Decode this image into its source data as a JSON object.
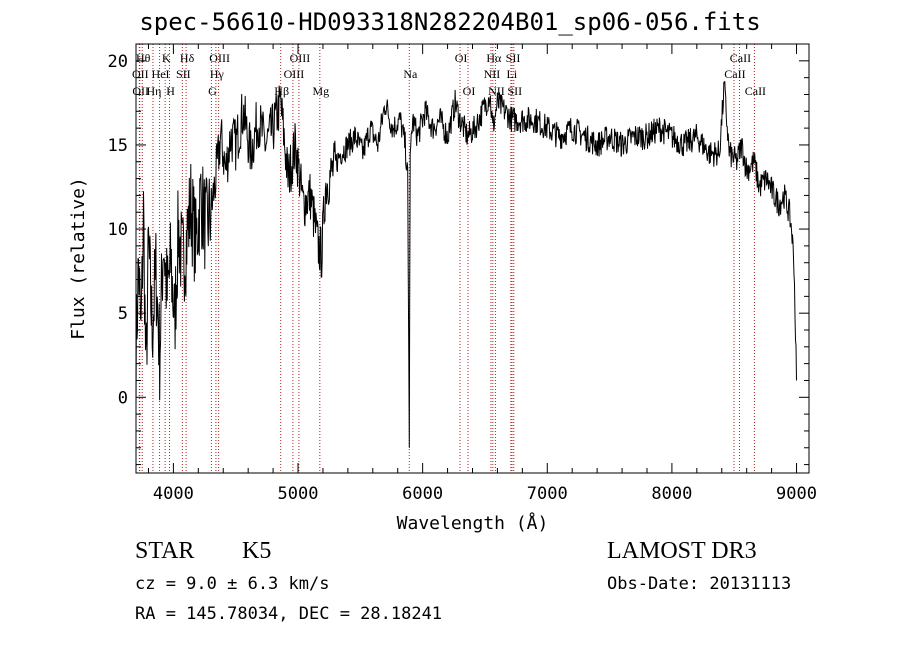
{
  "chart_data": {
    "type": "line",
    "title": "spec-56610-HD093318N282204B01_sp06-056.fits",
    "xlabel": "Wavelength (Å)",
    "ylabel": "Flux (relative)",
    "xlim": [
      3700,
      9100
    ],
    "ylim": [
      -4.5,
      21
    ],
    "xticks": [
      4000,
      5000,
      6000,
      7000,
      8000,
      9000
    ],
    "yticks": [
      0,
      5,
      10,
      15,
      20
    ],
    "series": [
      {
        "name": "flux",
        "x": [
          3700,
          3720,
          3740,
          3760,
          3780,
          3800,
          3830,
          3860,
          3890,
          3920,
          3950,
          3980,
          4010,
          4040,
          4070,
          4100,
          4140,
          4180,
          4220,
          4260,
          4300,
          4340,
          4380,
          4420,
          4460,
          4500,
          4560,
          4620,
          4680,
          4740,
          4800,
          4860,
          4920,
          4980,
          5040,
          5100,
          5160,
          5190,
          5220,
          5280,
          5340,
          5400,
          5460,
          5520,
          5580,
          5640,
          5700,
          5760,
          5820,
          5860,
          5880,
          5893,
          5900,
          5920,
          5960,
          6020,
          6080,
          6140,
          6200,
          6260,
          6300,
          6360,
          6420,
          6480,
          6540,
          6563,
          6600,
          6660,
          6720,
          6800,
          6900,
          7000,
          7100,
          7200,
          7300,
          7400,
          7500,
          7600,
          7700,
          7800,
          7900,
          8000,
          8100,
          8200,
          8300,
          8380,
          8420,
          8460,
          8520,
          8560,
          8600,
          8660,
          8700,
          8760,
          8820,
          8860,
          8900,
          8940,
          8960,
          8980,
          9000
        ],
        "values": [
          2.5,
          8.0,
          3.5,
          11.0,
          1.0,
          9.0,
          4.0,
          7.5,
          2.5,
          9.5,
          6.0,
          8.0,
          4.5,
          10.0,
          8.0,
          9.0,
          11.5,
          9.0,
          12.0,
          10.0,
          11.0,
          13.0,
          15.5,
          13.5,
          15.5,
          15.0,
          17.0,
          14.5,
          16.5,
          15.0,
          16.0,
          17.5,
          13.0,
          15.0,
          11.5,
          12.0,
          9.0,
          8.5,
          12.5,
          13.5,
          14.5,
          15.0,
          15.5,
          14.5,
          16.0,
          15.0,
          17.5,
          16.0,
          16.5,
          15.0,
          13.0,
          -3.0,
          14.5,
          16.5,
          15.5,
          17.0,
          16.0,
          16.5,
          15.5,
          17.5,
          16.5,
          15.5,
          16.0,
          17.0,
          18.0,
          16.0,
          17.5,
          17.0,
          16.5,
          16.5,
          16.5,
          16.0,
          15.5,
          16.0,
          15.5,
          15.0,
          15.5,
          15.0,
          15.5,
          15.5,
          16.0,
          15.5,
          15.0,
          15.5,
          14.5,
          14.5,
          18.5,
          14.5,
          14.0,
          15.0,
          13.5,
          14.0,
          12.5,
          13.0,
          12.0,
          11.5,
          12.0,
          11.0,
          10.0,
          8.0,
          1.0
        ]
      }
    ],
    "line_markers": [
      {
        "label": "Hθ",
        "x": 3750,
        "row": 1
      },
      {
        "label": "OII",
        "x": 3727,
        "row": 2
      },
      {
        "label": "OII",
        "x": 3730,
        "row": 3
      },
      {
        "label": "Hη",
        "x": 3836,
        "row": 3
      },
      {
        "label": "K",
        "x": 3934,
        "row": 1
      },
      {
        "label": "HeI",
        "x": 3889,
        "row": 2
      },
      {
        "label": "H",
        "x": 3969,
        "row": 3
      },
      {
        "label": "Hδ",
        "x": 4102,
        "row": 1
      },
      {
        "label": "SII",
        "x": 4072,
        "row": 2
      },
      {
        "label": "OIII",
        "x": 4363,
        "row": 1
      },
      {
        "label": "Hγ",
        "x": 4341,
        "row": 2
      },
      {
        "label": "G",
        "x": 4305,
        "row": 3
      },
      {
        "label": "Hβ",
        "x": 4861,
        "row": 3
      },
      {
        "label": "OIII",
        "x": 5007,
        "row": 1
      },
      {
        "label": "OIII",
        "x": 4959,
        "row": 2
      },
      {
        "label": "Mg",
        "x": 5175,
        "row": 3
      },
      {
        "label": "Na",
        "x": 5893,
        "row": 2
      },
      {
        "label": "OI",
        "x": 6300,
        "row": 1
      },
      {
        "label": "OI",
        "x": 6364,
        "row": 3
      },
      {
        "label": "Hα",
        "x": 6563,
        "row": 1
      },
      {
        "label": "NII",
        "x": 6548,
        "row": 2
      },
      {
        "label": "NII",
        "x": 6584,
        "row": 3
      },
      {
        "label": "SII",
        "x": 6717,
        "row": 1
      },
      {
        "label": "Li",
        "x": 6708,
        "row": 2
      },
      {
        "label": "SII",
        "x": 6731,
        "row": 3
      },
      {
        "label": "CaII",
        "x": 8542,
        "row": 1
      },
      {
        "label": "CaII",
        "x": 8498,
        "row": 2
      },
      {
        "label": "CaII",
        "x": 8662,
        "row": 3
      }
    ]
  },
  "footer": {
    "object_class": "STAR",
    "subclass": "K5",
    "survey": "LAMOST DR3",
    "redshift": "cz = 9.0 ± 6.3 km/s",
    "obs_date": "Obs-Date: 20131113",
    "coords": "RA = 145.78034, DEC =  28.18241"
  }
}
